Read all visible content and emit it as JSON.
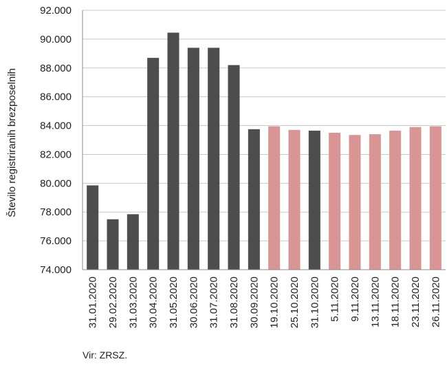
{
  "chart_data": {
    "type": "bar",
    "ylabel": "Število registriranih brezposelnih",
    "ylim": [
      74000,
      92000
    ],
    "ytick_step": 2000,
    "ytick_labels": [
      "74.000",
      "76.000",
      "78.000",
      "80.000",
      "82.000",
      "84.000",
      "86.000",
      "88.000",
      "90.000",
      "92.000"
    ],
    "grid": "horizontal",
    "categories": [
      "31.01.2020",
      "29.02.2020",
      "31.03.2020",
      "30.04.2020",
      "31.05.2020",
      "30.06.2020",
      "31.07.2020",
      "31.08.2020",
      "30.09.2020",
      "19.10.2020",
      "25.10.2020",
      "31.10.2020",
      "5.11.2020",
      "9.11.2020",
      "13.11.2020",
      "18.11.2020",
      "23.11.2020",
      "26.11.2020"
    ],
    "values": [
      79850,
      77500,
      77850,
      88700,
      90450,
      89400,
      89400,
      88200,
      83750,
      83950,
      83700,
      83650,
      83500,
      83350,
      83400,
      83650,
      83900,
      83950
    ],
    "bar_colors": [
      "#4d4d4d",
      "#4d4d4d",
      "#4d4d4d",
      "#4d4d4d",
      "#4d4d4d",
      "#4d4d4d",
      "#4d4d4d",
      "#4d4d4d",
      "#4d4d4d",
      "#d99494",
      "#d99494",
      "#4d4d4d",
      "#d99494",
      "#d99494",
      "#d99494",
      "#d99494",
      "#d99494",
      "#d99494"
    ]
  },
  "source_note": "Vir: ZRSZ."
}
